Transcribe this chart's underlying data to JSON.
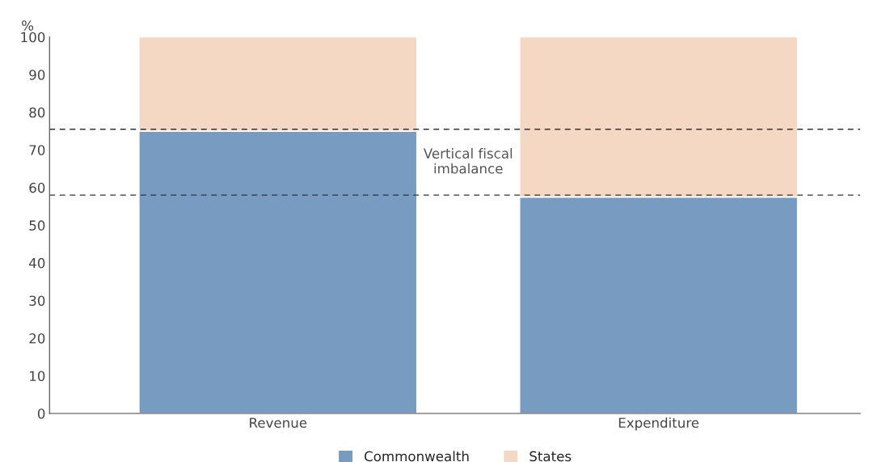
{
  "chart_data": {
    "type": "bar",
    "stacked": true,
    "ylabel": "%",
    "categories": [
      "Revenue",
      "Expenditure"
    ],
    "series": [
      {
        "name": "Commonwealth",
        "color": "#779bc1",
        "values": [
          75,
          57.5
        ]
      },
      {
        "name": "States",
        "color": "#f5d8c3",
        "values": [
          25,
          42.5
        ]
      }
    ],
    "ylim": [
      0,
      100
    ],
    "yticks": [
      0,
      10,
      20,
      30,
      40,
      50,
      60,
      70,
      80,
      90,
      100
    ],
    "ref_lines": [
      {
        "axis": "y",
        "value": 75.5,
        "color": "#333333",
        "line_style": "dashed"
      },
      {
        "axis": "y",
        "value": 58,
        "color": "#333333",
        "line_style": "dashed"
      }
    ],
    "annotations": [
      "Vertical fiscal\nimbalance"
    ],
    "grid": false,
    "legend": "bottom"
  }
}
